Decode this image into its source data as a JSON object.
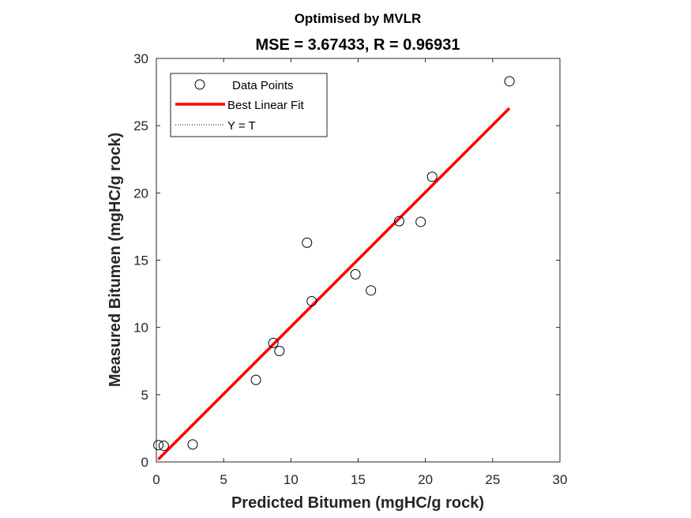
{
  "chart_data": {
    "type": "scatter",
    "title": "Optimised by MVLR",
    "subtitle": "MSE = 3.67433, R = 0.96931",
    "xlabel": "Predicted Bitumen (mgHC/g rock)",
    "ylabel": "Measured Bitumen (mgHC/g rock)",
    "xlim": [
      0,
      30
    ],
    "ylim": [
      0,
      30
    ],
    "xticks": [
      "0",
      "5",
      "10",
      "15",
      "20",
      "25",
      "30"
    ],
    "yticks": [
      "0",
      "5",
      "10",
      "15",
      "20",
      "25",
      "30"
    ],
    "grid": false,
    "legend_position": "top-left",
    "legend": [
      "Data Points",
      "Best Linear Fit",
      "Y = T"
    ],
    "series": [
      {
        "name": "Data Points",
        "marker": "open-circle",
        "color": "#000000",
        "points": [
          {
            "x": 0.15,
            "y": 1.25
          },
          {
            "x": 0.55,
            "y": 1.2
          },
          {
            "x": 2.7,
            "y": 1.3
          },
          {
            "x": 7.4,
            "y": 6.1
          },
          {
            "x": 8.7,
            "y": 8.85
          },
          {
            "x": 9.15,
            "y": 8.25
          },
          {
            "x": 11.2,
            "y": 16.3
          },
          {
            "x": 11.55,
            "y": 11.95
          },
          {
            "x": 14.8,
            "y": 13.95
          },
          {
            "x": 15.95,
            "y": 12.75
          },
          {
            "x": 18.05,
            "y": 17.9
          },
          {
            "x": 19.65,
            "y": 17.85
          },
          {
            "x": 20.5,
            "y": 21.2
          },
          {
            "x": 26.25,
            "y": 28.3
          }
        ]
      },
      {
        "name": "Best Linear Fit",
        "style": "solid",
        "color": "#ff0000",
        "x": [
          0.15,
          26.25
        ],
        "y": [
          0.2,
          26.3
        ]
      },
      {
        "name": "Y = T",
        "style": "dotted",
        "color": "#000000",
        "x": [
          0.15,
          26.25
        ],
        "y": [
          0.15,
          26.25
        ]
      }
    ]
  }
}
